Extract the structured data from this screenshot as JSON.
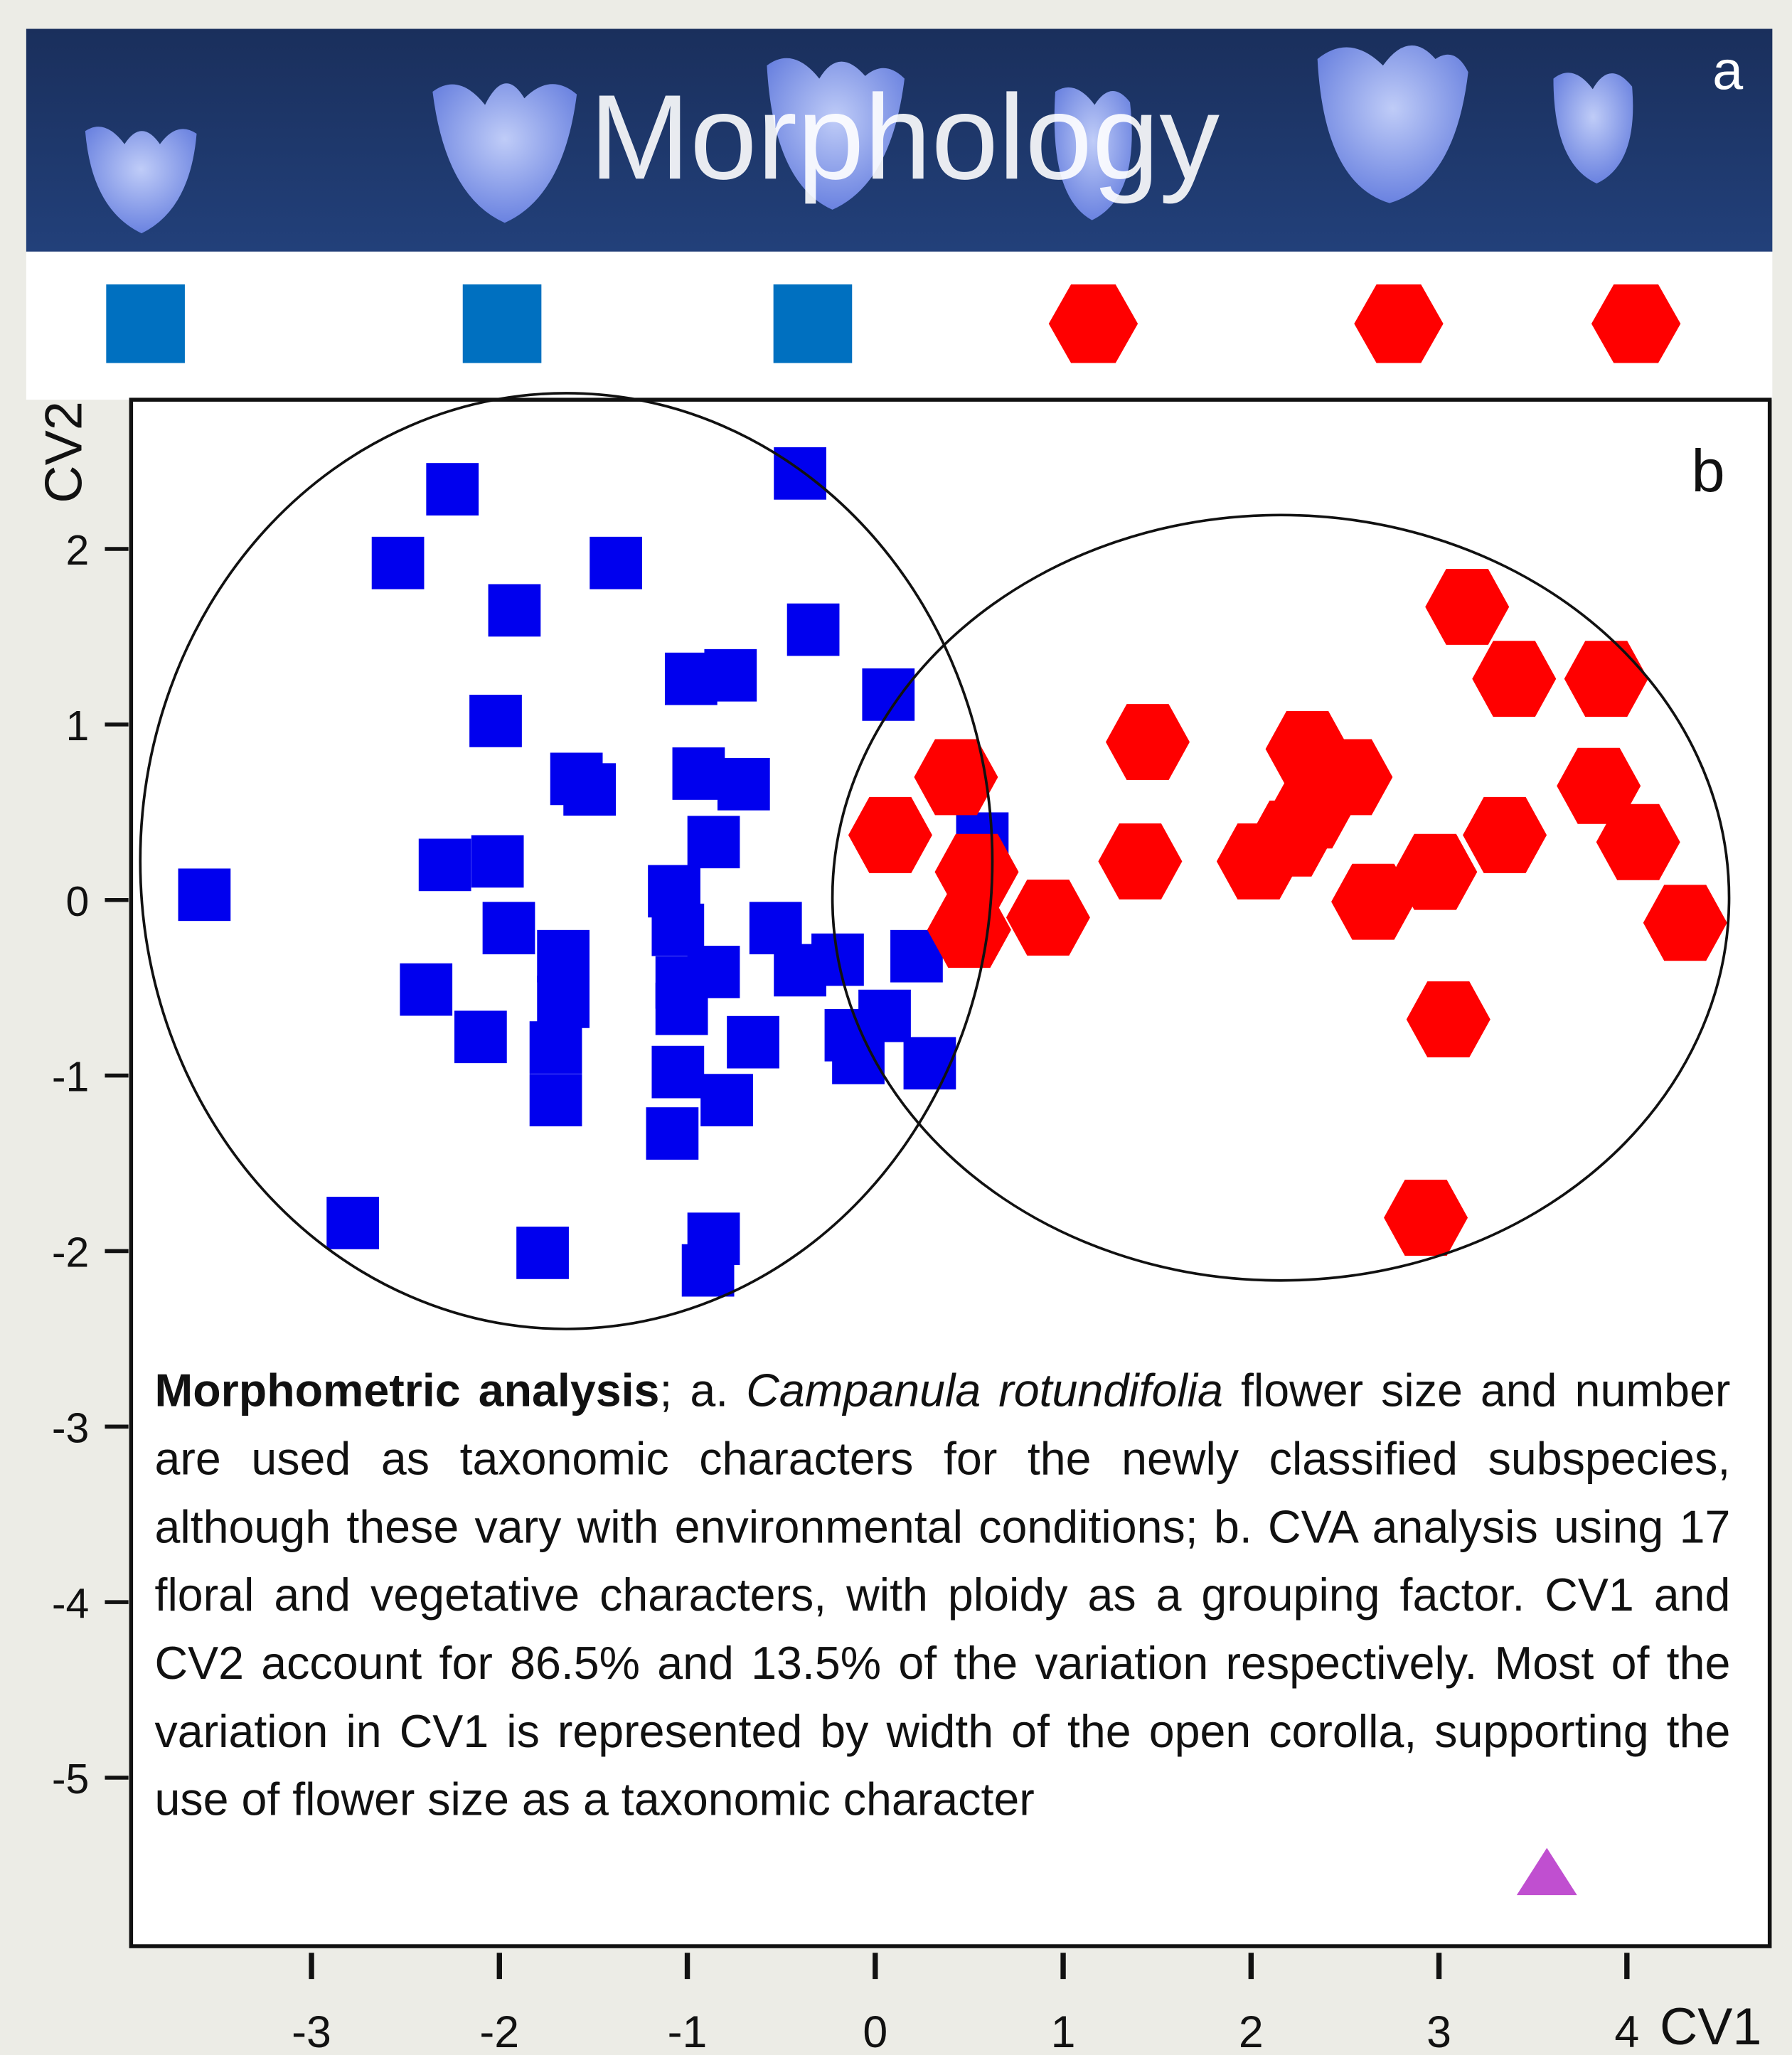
{
  "chart_data": {
    "type": "scatter",
    "title": "Morphology",
    "panel_labels": [
      "a",
      "b"
    ],
    "x_label": "CV1",
    "y_label": "CV2",
    "xlim": [
      -3.96,
      4.76
    ],
    "ylim": [
      -5.96,
      2.85
    ],
    "xticks": [
      -3,
      -2,
      -1,
      0,
      1,
      2,
      3,
      4
    ],
    "yticks": [
      -5,
      -4,
      -3,
      -2,
      -1,
      0,
      1,
      2
    ],
    "series": [
      {
        "color": "#0000ee",
        "marker": "square",
        "x": [
          -3.57,
          -2.25,
          -2.54,
          -1.38,
          -1.92,
          -0.4,
          -0.33,
          -2.02,
          -0.98,
          -0.77,
          0.07,
          -1.59,
          -1.52,
          -0.94,
          -0.7,
          -0.86,
          0.57,
          -2.29,
          -2.01,
          -1.07,
          -1.95,
          -1.66,
          -1.05,
          -0.53,
          -0.2,
          -2.39,
          -1.66,
          -1.03,
          -0.86,
          -0.4,
          0.22,
          -2.1,
          -1.7,
          -1.03,
          -0.65,
          -0.13,
          0.05,
          -1.7,
          -1.05,
          -0.79,
          0.29,
          -1.08,
          -0.09,
          -2.78,
          -1.77,
          -0.86,
          -0.89
        ],
        "y": [
          0.03,
          2.34,
          1.92,
          1.92,
          1.65,
          2.43,
          1.54,
          1.02,
          1.26,
          1.28,
          1.17,
          0.69,
          0.63,
          0.72,
          0.66,
          0.33,
          0.35,
          0.2,
          0.22,
          0.05,
          -0.16,
          -0.32,
          -0.17,
          -0.16,
          -0.34,
          -0.51,
          -0.58,
          -0.47,
          -0.41,
          -0.4,
          -0.32,
          -0.78,
          -0.84,
          -0.62,
          -0.81,
          -0.77,
          -0.66,
          -1.14,
          -0.98,
          -1.14,
          -0.93,
          -1.33,
          -0.9,
          -1.84,
          -2.01,
          -1.93,
          -2.11
        ]
      },
      {
        "color": "#ff0000",
        "marker": "hexagon",
        "x": [
          3.15,
          3.4,
          3.89,
          0.43,
          1.45,
          2.3,
          2.53,
          0.08,
          2.32,
          1.41,
          2.04,
          3.35,
          3.85,
          4.06,
          0.54,
          2.98,
          2.65,
          0.5,
          0.92,
          4.31,
          3.05,
          2.93,
          2.21
        ],
        "y": [
          1.67,
          1.26,
          1.26,
          0.7,
          0.9,
          0.86,
          0.7,
          0.37,
          0.51,
          0.22,
          0.22,
          0.37,
          0.65,
          0.33,
          0.16,
          0.16,
          -0.01,
          -0.17,
          -0.1,
          -0.13,
          -0.68,
          -1.81,
          0.35
        ]
      }
    ],
    "caption": {
      "bold": "Morphometric analysis",
      "text1": "; a. ",
      "italic": "Campanula rotundifolia",
      "text2": " flower size and number are used as taxonomic characters for the newly classified subspecies, although these vary with environmental  conditions; b. CVA analysis using 17 floral and vegetative characters, with ploidy as a grouping factor. CV1 and CV2 account for 86.5% and 13.5% of the variation respectively. Most of the variation in CV1 is represented by width of the open corolla, supporting the use of flower size as a taxonomic character"
    }
  }
}
